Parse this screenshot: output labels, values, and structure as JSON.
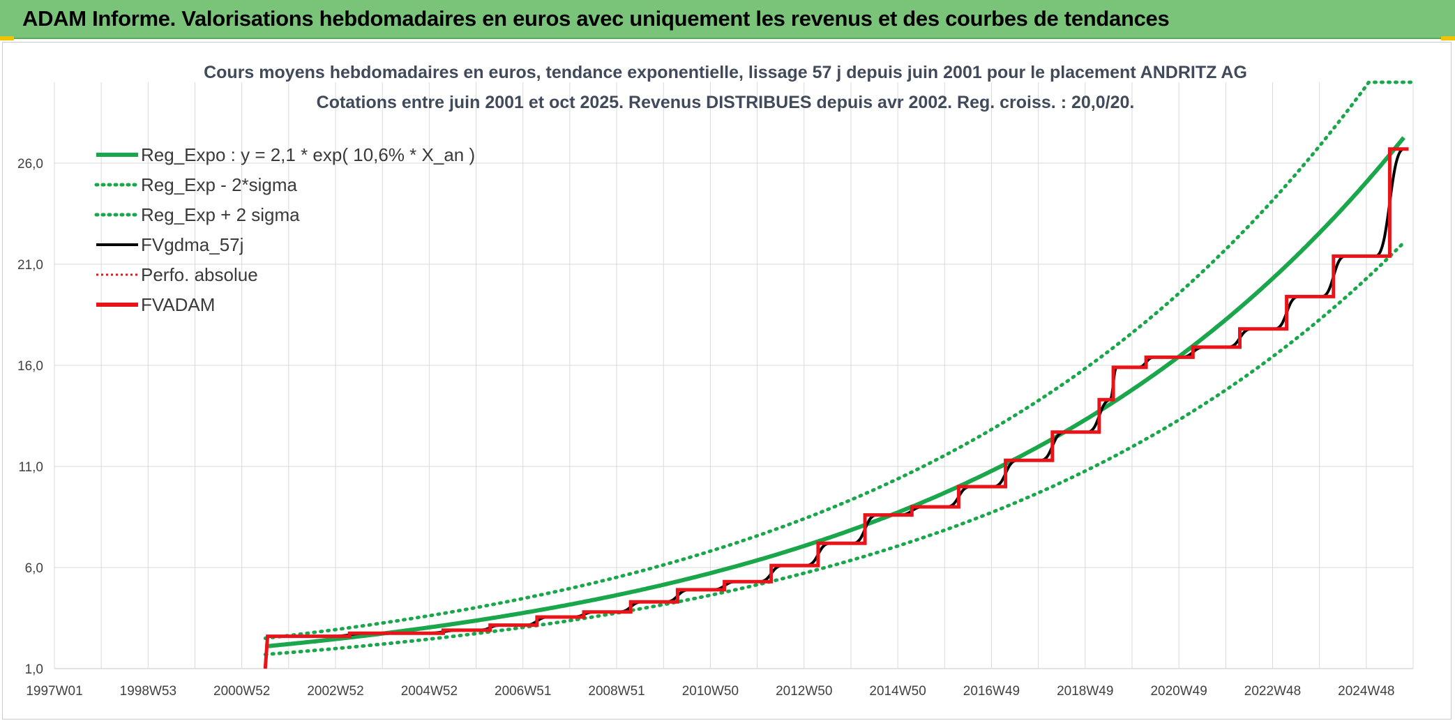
{
  "header": {
    "title": "ADAM Informe. Valorisations hebdomadaires en euros avec uniquement les revenus et des courbes de tendances"
  },
  "colors": {
    "header_bg": "#7ac47a",
    "reg_expo": "#1aa64a",
    "fvgdma": "#000000",
    "fvadam": "#e8141a",
    "perfo": "#e8141a",
    "grid": "#d9d9d9"
  },
  "chart_data": {
    "type": "line",
    "title": "Cours moyens hebdomadaires en euros, tendance exponentielle, lissage 57 j depuis juin 2001 pour le placement ANDRITZ AG",
    "subtitle": "Cotations entre juin 2001 et oct 2025. Revenus DISTRIBUES depuis avr 2002. Reg. croiss. : 20,0/20.",
    "xlabel": "",
    "ylabel": "",
    "x_ticks": [
      "1997W01",
      "1998W53",
      "2000W52",
      "2002W52",
      "2004W52",
      "2006W51",
      "2008W51",
      "2010W50",
      "2012W50",
      "2014W50",
      "2016W49",
      "2018W49",
      "2020W49",
      "2022W48",
      "2024W48"
    ],
    "x_range": [
      1997.0,
      2026.0
    ],
    "y_ticks": [
      "1,0",
      "6,0",
      "11,0",
      "16,0",
      "21,0",
      "26,0"
    ],
    "ylim": [
      1.0,
      30.0
    ],
    "grid": true,
    "legend_position": "top-left",
    "legend": [
      {
        "label": "Reg_Expo : y = 2,1 * exp( 10,6% *  X_an )",
        "style": "solid-thick",
        "color": "#1aa64a"
      },
      {
        "label": "Reg_Exp - 2*sigma",
        "style": "dotted",
        "color": "#1aa64a"
      },
      {
        "label": "Reg_Exp + 2 sigma",
        "style": "dotted",
        "color": "#1aa64a"
      },
      {
        "label": "FVgdma_57j",
        "style": "solid",
        "color": "#000000"
      },
      {
        "label": "Perfo. absolue",
        "style": "dotted-thin",
        "color": "#e8141a"
      },
      {
        "label": "FVADAM",
        "style": "solid-thick",
        "color": "#e8141a"
      }
    ],
    "series": [
      {
        "name": "Reg_Expo : y = 2,1 * exp( 10,6% *  X_an )",
        "x": [
          2001.5,
          2003,
          2005,
          2007,
          2009,
          2011,
          2013,
          2015,
          2017,
          2019,
          2021,
          2023,
          2025,
          2026
        ],
        "values": [
          2.1,
          2.46,
          3.04,
          3.76,
          4.64,
          5.74,
          7.09,
          8.76,
          10.83,
          13.38,
          16.54,
          20.44,
          25.27,
          28.1
        ]
      },
      {
        "name": "Reg_Exp - 2*sigma",
        "x": [
          2001.5,
          2003,
          2005,
          2007,
          2009,
          2011,
          2013,
          2015,
          2017,
          2019,
          2021,
          2023,
          2025,
          2026
        ],
        "values": [
          1.7,
          1.99,
          2.46,
          3.04,
          3.76,
          4.65,
          5.74,
          7.1,
          8.77,
          10.84,
          13.4,
          16.56,
          20.47,
          22.8
        ]
      },
      {
        "name": "Reg_Exp + 2 sigma",
        "x": [
          2001.5,
          2003,
          2005,
          2007,
          2009,
          2011,
          2013,
          2015,
          2017,
          2019,
          2021,
          2023,
          2025,
          2026
        ],
        "values": [
          2.5,
          2.93,
          3.62,
          4.47,
          5.52,
          6.83,
          8.44,
          10.42,
          12.89,
          15.92,
          19.68,
          24.32,
          30.0,
          30.0
        ]
      },
      {
        "name": "FVADAM",
        "x": [
          2001.5,
          2001.55,
          2003.3,
          2005.3,
          2006.3,
          2007.3,
          2008.3,
          2009.3,
          2010.3,
          2011.3,
          2012.3,
          2013.3,
          2014.3,
          2015.3,
          2016.3,
          2017.3,
          2018.3,
          2019.3,
          2019.6,
          2020.3,
          2021.3,
          2022.3,
          2023.3,
          2024.3,
          2025.5
        ],
        "values": [
          1.0,
          2.6,
          2.75,
          2.9,
          3.15,
          3.55,
          3.8,
          4.3,
          4.9,
          5.3,
          6.1,
          7.2,
          8.6,
          9.0,
          10.0,
          11.3,
          12.7,
          14.3,
          15.9,
          16.4,
          16.9,
          17.8,
          19.4,
          21.4,
          26.7
        ]
      },
      {
        "name": "FVgdma_57j",
        "x": [
          2001.5,
          2001.55,
          2003.3,
          2005.3,
          2006.3,
          2007.3,
          2008.3,
          2009.3,
          2010.3,
          2011.3,
          2012.3,
          2013.3,
          2014.3,
          2015.3,
          2016.3,
          2017.3,
          2018.3,
          2019.3,
          2019.6,
          2020.3,
          2021.3,
          2022.3,
          2023.3,
          2024.3,
          2025.5
        ],
        "values": [
          1.0,
          2.6,
          2.75,
          2.9,
          3.15,
          3.55,
          3.8,
          4.3,
          4.9,
          5.3,
          6.1,
          7.2,
          8.6,
          9.0,
          10.0,
          11.3,
          12.7,
          14.3,
          15.9,
          16.4,
          16.9,
          17.8,
          19.4,
          21.4,
          26.7
        ]
      }
    ]
  }
}
